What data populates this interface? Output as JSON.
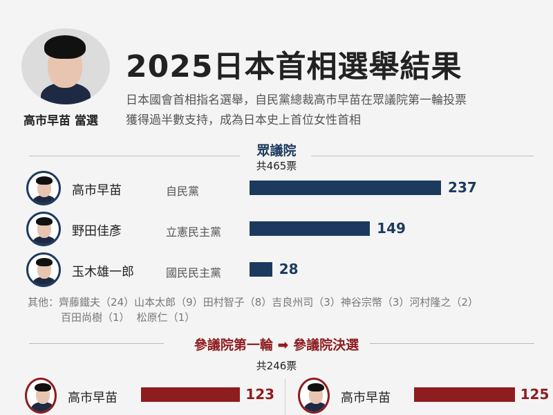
{
  "header": {
    "title": "2025日本首相選舉結果",
    "subtitle_line1": "日本國會首相指名選舉，自民黨總裁高市早苗在眾議院第一輪投票",
    "subtitle_line2": "獲得過半數支持，成為日本史上首位女性首相",
    "winner_label": "高市早苗 當選"
  },
  "colors": {
    "lower_house": "#1c3a5e",
    "upper_house": "#8e1d20",
    "background": "#f4f4f4"
  },
  "chart_data": [
    {
      "type": "bar",
      "title": "眾議院",
      "subtitle": "共465票",
      "orientation": "horizontal",
      "categories": [
        "高市早苗",
        "野田佳彥",
        "玉木雄一郎"
      ],
      "parties": [
        "自民黨",
        "立憲民主黨",
        "國民民主黨"
      ],
      "values": [
        237,
        149,
        28
      ],
      "others_label": "其他：",
      "others": [
        {
          "name": "齊藤鐵夫",
          "votes": "（24）"
        },
        {
          "name": "山本太郎",
          "votes": "（9）"
        },
        {
          "name": "田村智子",
          "votes": "（8）"
        },
        {
          "name": "吉良州司",
          "votes": "（3）"
        },
        {
          "name": "神谷宗幣",
          "votes": "（3）"
        },
        {
          "name": "河村隆之",
          "votes": "（2）"
        },
        {
          "name": "百田尚樹",
          "votes": "（1）"
        },
        {
          "name": "松原仁",
          "votes": "（1）"
        }
      ]
    },
    {
      "type": "bar",
      "title_left": "參議院第一輪",
      "title_right": "參議院決選",
      "subtitle": "共246票",
      "orientation": "horizontal",
      "panels": [
        {
          "category": "高市早苗",
          "value": 123
        },
        {
          "category": "高市早苗",
          "value": 125
        }
      ]
    }
  ]
}
